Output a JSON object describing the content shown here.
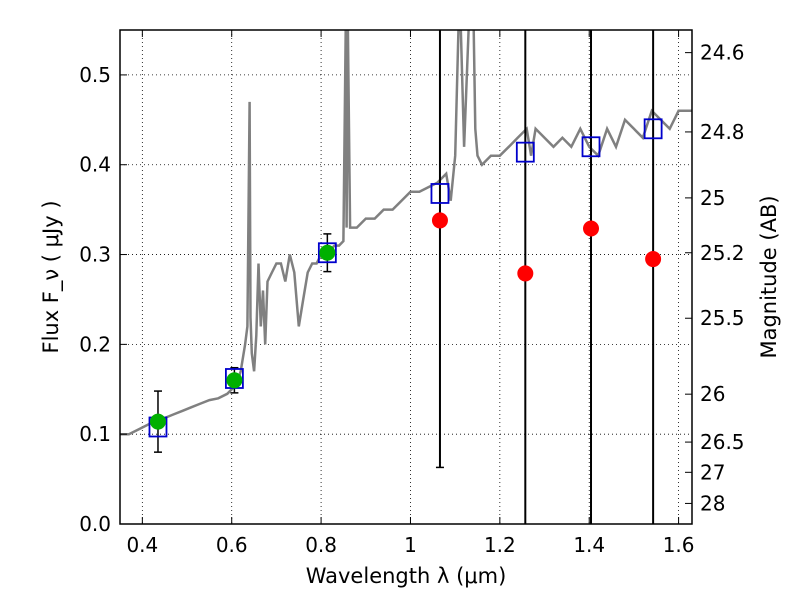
{
  "chart_data": {
    "type": "scatter",
    "xlabel": "Wavelength  λ (μm)",
    "ylabel": "Flux  F_ν  ( μJy )",
    "y2label": "Magnitude (AB)",
    "xlim": [
      0.35,
      1.63
    ],
    "ylim": [
      0.0,
      0.55
    ],
    "x_ticks": [
      "0.4",
      "0.6",
      "0.8",
      "1",
      "1.2",
      "1.4",
      "1.6"
    ],
    "x_tick_values": [
      0.4,
      0.6,
      0.8,
      1.0,
      1.2,
      1.4,
      1.6
    ],
    "y_ticks": [
      "0.0",
      "0.1",
      "0.2",
      "0.3",
      "0.4",
      "0.5"
    ],
    "y_tick_values": [
      0.0,
      0.1,
      0.2,
      0.3,
      0.4,
      0.5
    ],
    "y2_ticks": [
      "24.6",
      "24.8",
      "25",
      "25.2",
      "25.5",
      "26",
      "26.5",
      "27",
      "28"
    ],
    "grid": true,
    "colors": {
      "spectrum": "#808080",
      "model_squares": "#0000cc",
      "detections": "#00b000",
      "upper": "#ff0000",
      "errorbars": "#000000"
    },
    "series": [
      {
        "marker": "square-open",
        "x": [
          0.435,
          0.606,
          0.814,
          1.066,
          1.257,
          1.404,
          1.543
        ],
        "y": [
          0.108,
          0.162,
          0.302,
          0.368,
          0.414,
          0.42,
          0.44
        ]
      },
      {
        "marker": "circle-green",
        "x": [
          0.435,
          0.606,
          0.814
        ],
        "y": [
          0.114,
          0.16,
          0.302
        ],
        "yerr": [
          0.034,
          0.014,
          0.021
        ]
      },
      {
        "marker": "circle-red",
        "x": [
          1.066,
          1.257,
          1.404,
          1.543
        ],
        "y": [
          0.338,
          0.279,
          0.329,
          0.295
        ],
        "ylow": [
          0.063,
          0.0,
          0.0,
          0.0
        ],
        "yhigh": [
          0.55,
          0.55,
          0.55,
          0.55
        ]
      },
      {
        "marker": "spectrum-line",
        "x": [
          0.35,
          0.37,
          0.39,
          0.41,
          0.43,
          0.45,
          0.47,
          0.49,
          0.51,
          0.53,
          0.55,
          0.57,
          0.59,
          0.6,
          0.61,
          0.62,
          0.63,
          0.635,
          0.64,
          0.642,
          0.645,
          0.65,
          0.655,
          0.66,
          0.665,
          0.67,
          0.675,
          0.68,
          0.69,
          0.7,
          0.71,
          0.72,
          0.73,
          0.74,
          0.75,
          0.76,
          0.77,
          0.78,
          0.79,
          0.8,
          0.81,
          0.82,
          0.83,
          0.84,
          0.85,
          0.855,
          0.857,
          0.86,
          0.865,
          0.87,
          0.88,
          0.9,
          0.92,
          0.94,
          0.96,
          0.98,
          1.0,
          1.02,
          1.04,
          1.06,
          1.08,
          1.09,
          1.1,
          1.11,
          1.12,
          1.13,
          1.14,
          1.145,
          1.15,
          1.16,
          1.18,
          1.2,
          1.22,
          1.24,
          1.26,
          1.27,
          1.28,
          1.3,
          1.32,
          1.34,
          1.36,
          1.38,
          1.4,
          1.42,
          1.44,
          1.46,
          1.48,
          1.5,
          1.52,
          1.54,
          1.56,
          1.58,
          1.6,
          1.63
        ],
        "y": [
          0.1,
          0.1,
          0.105,
          0.11,
          0.115,
          0.118,
          0.122,
          0.126,
          0.13,
          0.134,
          0.138,
          0.14,
          0.145,
          0.15,
          0.155,
          0.17,
          0.2,
          0.22,
          0.47,
          0.23,
          0.19,
          0.17,
          0.21,
          0.29,
          0.22,
          0.26,
          0.2,
          0.27,
          0.28,
          0.29,
          0.29,
          0.27,
          0.3,
          0.28,
          0.22,
          0.25,
          0.28,
          0.29,
          0.29,
          0.3,
          0.3,
          0.305,
          0.31,
          0.31,
          0.315,
          0.55,
          0.33,
          0.55,
          0.33,
          0.33,
          0.33,
          0.34,
          0.34,
          0.35,
          0.35,
          0.36,
          0.37,
          0.37,
          0.375,
          0.38,
          0.39,
          0.36,
          0.41,
          0.6,
          0.42,
          0.55,
          0.6,
          0.44,
          0.41,
          0.4,
          0.41,
          0.41,
          0.42,
          0.43,
          0.44,
          0.41,
          0.44,
          0.43,
          0.42,
          0.43,
          0.42,
          0.44,
          0.42,
          0.41,
          0.44,
          0.42,
          0.45,
          0.44,
          0.43,
          0.46,
          0.45,
          0.44,
          0.46,
          0.46
        ]
      }
    ]
  }
}
